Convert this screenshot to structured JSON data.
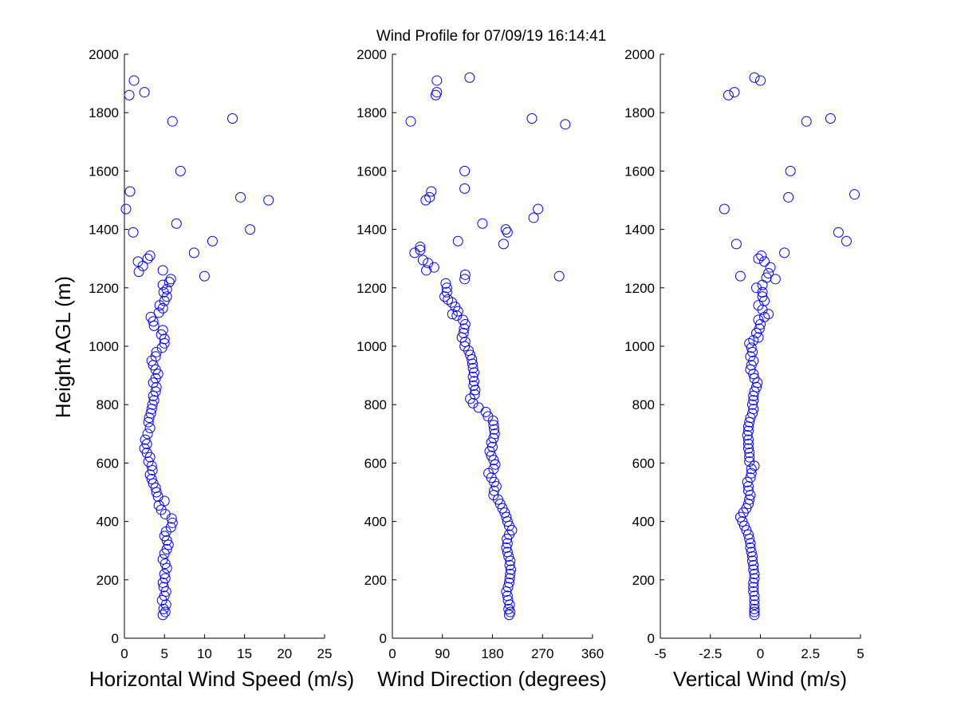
{
  "figure": {
    "title": "Wind Profile for  07/09/19 16:14:41",
    "marker_color": "#0000ff"
  },
  "chart_data": [
    {
      "type": "scatter",
      "xlabel": "Horizontal Wind Speed (m/s)",
      "ylabel": "Height AGL (m)",
      "xlim": [
        0,
        25
      ],
      "ylim": [
        0,
        2000
      ],
      "xticks": [
        0,
        5,
        10,
        15,
        20,
        25
      ],
      "xtick_labels": [
        "0",
        "5",
        "10",
        "15",
        "20",
        "25"
      ],
      "yticks": [
        0,
        200,
        400,
        600,
        800,
        1000,
        1200,
        1400,
        1600,
        1800,
        2000
      ],
      "ytick_labels": [
        "0",
        "200",
        "400",
        "600",
        "800",
        "1000",
        "1200",
        "1400",
        "1600",
        "1800",
        "2000"
      ],
      "grid": false,
      "points": [
        [
          4.8,
          80
        ],
        [
          5.1,
          90
        ],
        [
          4.9,
          100
        ],
        [
          5.2,
          115
        ],
        [
          4.7,
          130
        ],
        [
          5.0,
          145
        ],
        [
          5.2,
          160
        ],
        [
          4.9,
          175
        ],
        [
          4.8,
          190
        ],
        [
          5.1,
          205
        ],
        [
          5.0,
          220
        ],
        [
          5.3,
          240
        ],
        [
          5.1,
          255
        ],
        [
          4.8,
          270
        ],
        [
          5.0,
          290
        ],
        [
          5.3,
          305
        ],
        [
          5.5,
          320
        ],
        [
          5.3,
          335
        ],
        [
          5.0,
          350
        ],
        [
          5.2,
          365
        ],
        [
          5.8,
          380
        ],
        [
          6.0,
          395
        ],
        [
          5.9,
          410
        ],
        [
          5.1,
          425
        ],
        [
          4.6,
          440
        ],
        [
          4.3,
          455
        ],
        [
          5.0,
          470
        ],
        [
          4.2,
          485
        ],
        [
          4.0,
          500
        ],
        [
          3.9,
          515
        ],
        [
          3.6,
          530
        ],
        [
          3.4,
          545
        ],
        [
          3.2,
          560
        ],
        [
          3.5,
          575
        ],
        [
          3.4,
          590
        ],
        [
          3.0,
          605
        ],
        [
          3.2,
          620
        ],
        [
          2.8,
          635
        ],
        [
          2.5,
          650
        ],
        [
          2.8,
          665
        ],
        [
          2.6,
          680
        ],
        [
          2.9,
          700
        ],
        [
          3.2,
          720
        ],
        [
          3.0,
          740
        ],
        [
          3.1,
          755
        ],
        [
          3.3,
          770
        ],
        [
          3.4,
          785
        ],
        [
          3.5,
          800
        ],
        [
          3.7,
          815
        ],
        [
          3.6,
          830
        ],
        [
          3.9,
          845
        ],
        [
          4.0,
          860
        ],
        [
          3.6,
          875
        ],
        [
          3.9,
          890
        ],
        [
          4.2,
          905
        ],
        [
          3.9,
          920
        ],
        [
          3.6,
          935
        ],
        [
          3.4,
          950
        ],
        [
          3.9,
          965
        ],
        [
          4.0,
          980
        ],
        [
          4.7,
          995
        ],
        [
          5.0,
          1010
        ],
        [
          5.0,
          1025
        ],
        [
          4.6,
          1040
        ],
        [
          4.8,
          1055
        ],
        [
          3.7,
          1070
        ],
        [
          3.6,
          1085
        ],
        [
          3.3,
          1100
        ],
        [
          4.3,
          1115
        ],
        [
          4.8,
          1130
        ],
        [
          4.4,
          1140
        ],
        [
          5.0,
          1155
        ],
        [
          5.3,
          1170
        ],
        [
          4.9,
          1185
        ],
        [
          5.3,
          1195
        ],
        [
          4.8,
          1210
        ],
        [
          5.6,
          1220
        ],
        [
          5.8,
          1230
        ],
        [
          4.8,
          1260
        ],
        [
          1.8,
          1255
        ],
        [
          2.3,
          1275
        ],
        [
          1.7,
          1290
        ],
        [
          2.9,
          1300
        ],
        [
          3.2,
          1310
        ],
        [
          8.7,
          1320
        ],
        [
          11.0,
          1360
        ],
        [
          10.0,
          1240
        ],
        [
          15.7,
          1400
        ],
        [
          6.5,
          1420
        ],
        [
          1.1,
          1390
        ],
        [
          0.2,
          1470
        ],
        [
          14.5,
          1510
        ],
        [
          18.0,
          1500
        ],
        [
          0.7,
          1530
        ],
        [
          7.0,
          1600
        ],
        [
          6.0,
          1770
        ],
        [
          13.5,
          1780
        ],
        [
          2.5,
          1870
        ],
        [
          0.6,
          1860
        ],
        [
          1.2,
          1910
        ]
      ]
    },
    {
      "type": "scatter",
      "xlabel": "Wind Direction (degrees)",
      "ylabel": "",
      "xlim": [
        0,
        360
      ],
      "ylim": [
        0,
        2000
      ],
      "xticks": [
        0,
        90,
        180,
        270,
        360
      ],
      "xtick_labels": [
        "0",
        "90",
        "180",
        "270",
        "360"
      ],
      "yticks": [
        0,
        200,
        400,
        600,
        800,
        1000,
        1200,
        1400,
        1600,
        1800,
        2000
      ],
      "ytick_labels": [
        "0",
        "200",
        "400",
        "600",
        "800",
        "1000",
        "1200",
        "1400",
        "1600",
        "1800",
        "2000"
      ],
      "grid": false,
      "points": [
        [
          210,
          80
        ],
        [
          212,
          90
        ],
        [
          209,
          100
        ],
        [
          211,
          115
        ],
        [
          208,
          130
        ],
        [
          207,
          145
        ],
        [
          205,
          160
        ],
        [
          208,
          175
        ],
        [
          210,
          190
        ],
        [
          211,
          205
        ],
        [
          212,
          220
        ],
        [
          213,
          235
        ],
        [
          211,
          250
        ],
        [
          212,
          265
        ],
        [
          209,
          280
        ],
        [
          207,
          295
        ],
        [
          205,
          310
        ],
        [
          207,
          325
        ],
        [
          206,
          340
        ],
        [
          210,
          355
        ],
        [
          215,
          370
        ],
        [
          210,
          385
        ],
        [
          207,
          400
        ],
        [
          205,
          415
        ],
        [
          202,
          430
        ],
        [
          198,
          445
        ],
        [
          194,
          460
        ],
        [
          190,
          475
        ],
        [
          182,
          490
        ],
        [
          183,
          505
        ],
        [
          187,
          520
        ],
        [
          183,
          535
        ],
        [
          178,
          550
        ],
        [
          173,
          565
        ],
        [
          182,
          580
        ],
        [
          185,
          595
        ],
        [
          182,
          610
        ],
        [
          178,
          625
        ],
        [
          175,
          640
        ],
        [
          180,
          655
        ],
        [
          178,
          670
        ],
        [
          182,
          685
        ],
        [
          184,
          700
        ],
        [
          183,
          715
        ],
        [
          182,
          730
        ],
        [
          181,
          745
        ],
        [
          172,
          760
        ],
        [
          168,
          775
        ],
        [
          155,
          790
        ],
        [
          145,
          805
        ],
        [
          140,
          820
        ],
        [
          148,
          835
        ],
        [
          149,
          850
        ],
        [
          146,
          865
        ],
        [
          147,
          880
        ],
        [
          145,
          895
        ],
        [
          147,
          910
        ],
        [
          145,
          925
        ],
        [
          144,
          940
        ],
        [
          143,
          955
        ],
        [
          140,
          970
        ],
        [
          137,
          985
        ],
        [
          130,
          1000
        ],
        [
          131,
          1015
        ],
        [
          125,
          1030
        ],
        [
          128,
          1045
        ],
        [
          129,
          1060
        ],
        [
          131,
          1075
        ],
        [
          127,
          1090
        ],
        [
          116,
          1105
        ],
        [
          118,
          1120
        ],
        [
          108,
          1110
        ],
        [
          113,
          1135
        ],
        [
          107,
          1150
        ],
        [
          100,
          1160
        ],
        [
          94,
          1170
        ],
        [
          98,
          1185
        ],
        [
          98,
          1200
        ],
        [
          96,
          1215
        ],
        [
          130,
          1230
        ],
        [
          131,
          1245
        ],
        [
          75,
          1270
        ],
        [
          61,
          1260
        ],
        [
          64,
          1285
        ],
        [
          55,
          1295
        ],
        [
          40,
          1320
        ],
        [
          50,
          1330
        ],
        [
          50,
          1340
        ],
        [
          118,
          1360
        ],
        [
          162,
          1420
        ],
        [
          200,
          1350
        ],
        [
          204,
          1400
        ],
        [
          207,
          1390
        ],
        [
          254,
          1440
        ],
        [
          262,
          1470
        ],
        [
          60,
          1500
        ],
        [
          67,
          1510
        ],
        [
          70,
          1530
        ],
        [
          130,
          1540
        ],
        [
          130,
          1600
        ],
        [
          33,
          1770
        ],
        [
          251,
          1780
        ],
        [
          311,
          1760
        ],
        [
          78,
          1860
        ],
        [
          80,
          1870
        ],
        [
          80,
          1910
        ],
        [
          139,
          1920
        ],
        [
          300,
          1240
        ]
      ]
    },
    {
      "type": "scatter",
      "xlabel": "Vertical Wind (m/s)",
      "ylabel": "",
      "xlim": [
        -5,
        5
      ],
      "ylim": [
        0,
        2000
      ],
      "xticks": [
        -5,
        -2.5,
        0,
        2.5,
        5
      ],
      "xtick_labels": [
        "-5",
        "-2.5",
        "0",
        "2.5",
        "5"
      ],
      "yticks": [
        0,
        200,
        400,
        600,
        800,
        1000,
        1200,
        1400,
        1600,
        1800,
        2000
      ],
      "ytick_labels": [
        "0",
        "200",
        "400",
        "600",
        "800",
        "1000",
        "1200",
        "1400",
        "1600",
        "1800",
        "2000"
      ],
      "grid": false,
      "points": [
        [
          -0.3,
          80
        ],
        [
          -0.3,
          90
        ],
        [
          -0.3,
          100
        ],
        [
          -0.3,
          115
        ],
        [
          -0.3,
          130
        ],
        [
          -0.3,
          145
        ],
        [
          -0.35,
          160
        ],
        [
          -0.35,
          175
        ],
        [
          -0.35,
          190
        ],
        [
          -0.3,
          205
        ],
        [
          -0.3,
          220
        ],
        [
          -0.35,
          235
        ],
        [
          -0.35,
          250
        ],
        [
          -0.4,
          265
        ],
        [
          -0.4,
          280
        ],
        [
          -0.45,
          295
        ],
        [
          -0.5,
          310
        ],
        [
          -0.5,
          325
        ],
        [
          -0.55,
          340
        ],
        [
          -0.6,
          355
        ],
        [
          -0.7,
          370
        ],
        [
          -0.8,
          385
        ],
        [
          -0.9,
          400
        ],
        [
          -1.0,
          415
        ],
        [
          -0.85,
          430
        ],
        [
          -0.7,
          445
        ],
        [
          -0.6,
          460
        ],
        [
          -0.55,
          475
        ],
        [
          -0.5,
          490
        ],
        [
          -0.6,
          505
        ],
        [
          -0.6,
          520
        ],
        [
          -0.65,
          535
        ],
        [
          -0.5,
          550
        ],
        [
          -0.45,
          565
        ],
        [
          -0.45,
          580
        ],
        [
          -0.3,
          590
        ],
        [
          -0.55,
          605
        ],
        [
          -0.55,
          620
        ],
        [
          -0.55,
          635
        ],
        [
          -0.6,
          650
        ],
        [
          -0.6,
          665
        ],
        [
          -0.6,
          680
        ],
        [
          -0.65,
          695
        ],
        [
          -0.6,
          710
        ],
        [
          -0.6,
          725
        ],
        [
          -0.55,
          740
        ],
        [
          -0.5,
          755
        ],
        [
          -0.4,
          770
        ],
        [
          -0.35,
          785
        ],
        [
          -0.4,
          800
        ],
        [
          -0.35,
          815
        ],
        [
          -0.35,
          830
        ],
        [
          -0.3,
          845
        ],
        [
          -0.2,
          860
        ],
        [
          -0.15,
          875
        ],
        [
          -0.3,
          890
        ],
        [
          -0.35,
          905
        ],
        [
          -0.5,
          920
        ],
        [
          -0.45,
          935
        ],
        [
          -0.35,
          950
        ],
        [
          -0.5,
          965
        ],
        [
          -0.4,
          980
        ],
        [
          -0.45,
          995
        ],
        [
          -0.55,
          1010
        ],
        [
          -0.35,
          1020
        ],
        [
          -0.1,
          1030
        ],
        [
          -0.2,
          1045
        ],
        [
          -0.05,
          1060
        ],
        [
          0.0,
          1075
        ],
        [
          -0.1,
          1090
        ],
        [
          0.2,
          1100
        ],
        [
          0.4,
          1110
        ],
        [
          0.1,
          1125
        ],
        [
          -0.1,
          1140
        ],
        [
          0.2,
          1155
        ],
        [
          0.1,
          1170
        ],
        [
          0.1,
          1185
        ],
        [
          -0.2,
          1200
        ],
        [
          0.1,
          1210
        ],
        [
          0.3,
          1235
        ],
        [
          0.5,
          1270
        ],
        [
          0.75,
          1230
        ],
        [
          0.4,
          1250
        ],
        [
          -1.0,
          1240
        ],
        [
          0.05,
          1310
        ],
        [
          -0.1,
          1300
        ],
        [
          0.2,
          1290
        ],
        [
          -1.2,
          1350
        ],
        [
          1.2,
          1320
        ],
        [
          3.9,
          1390
        ],
        [
          4.3,
          1360
        ],
        [
          -1.8,
          1470
        ],
        [
          4.7,
          1520
        ],
        [
          1.4,
          1510
        ],
        [
          1.5,
          1600
        ],
        [
          2.3,
          1770
        ],
        [
          3.5,
          1780
        ],
        [
          -1.6,
          1860
        ],
        [
          -1.3,
          1870
        ],
        [
          -0.3,
          1920
        ],
        [
          0.0,
          1910
        ]
      ]
    }
  ]
}
